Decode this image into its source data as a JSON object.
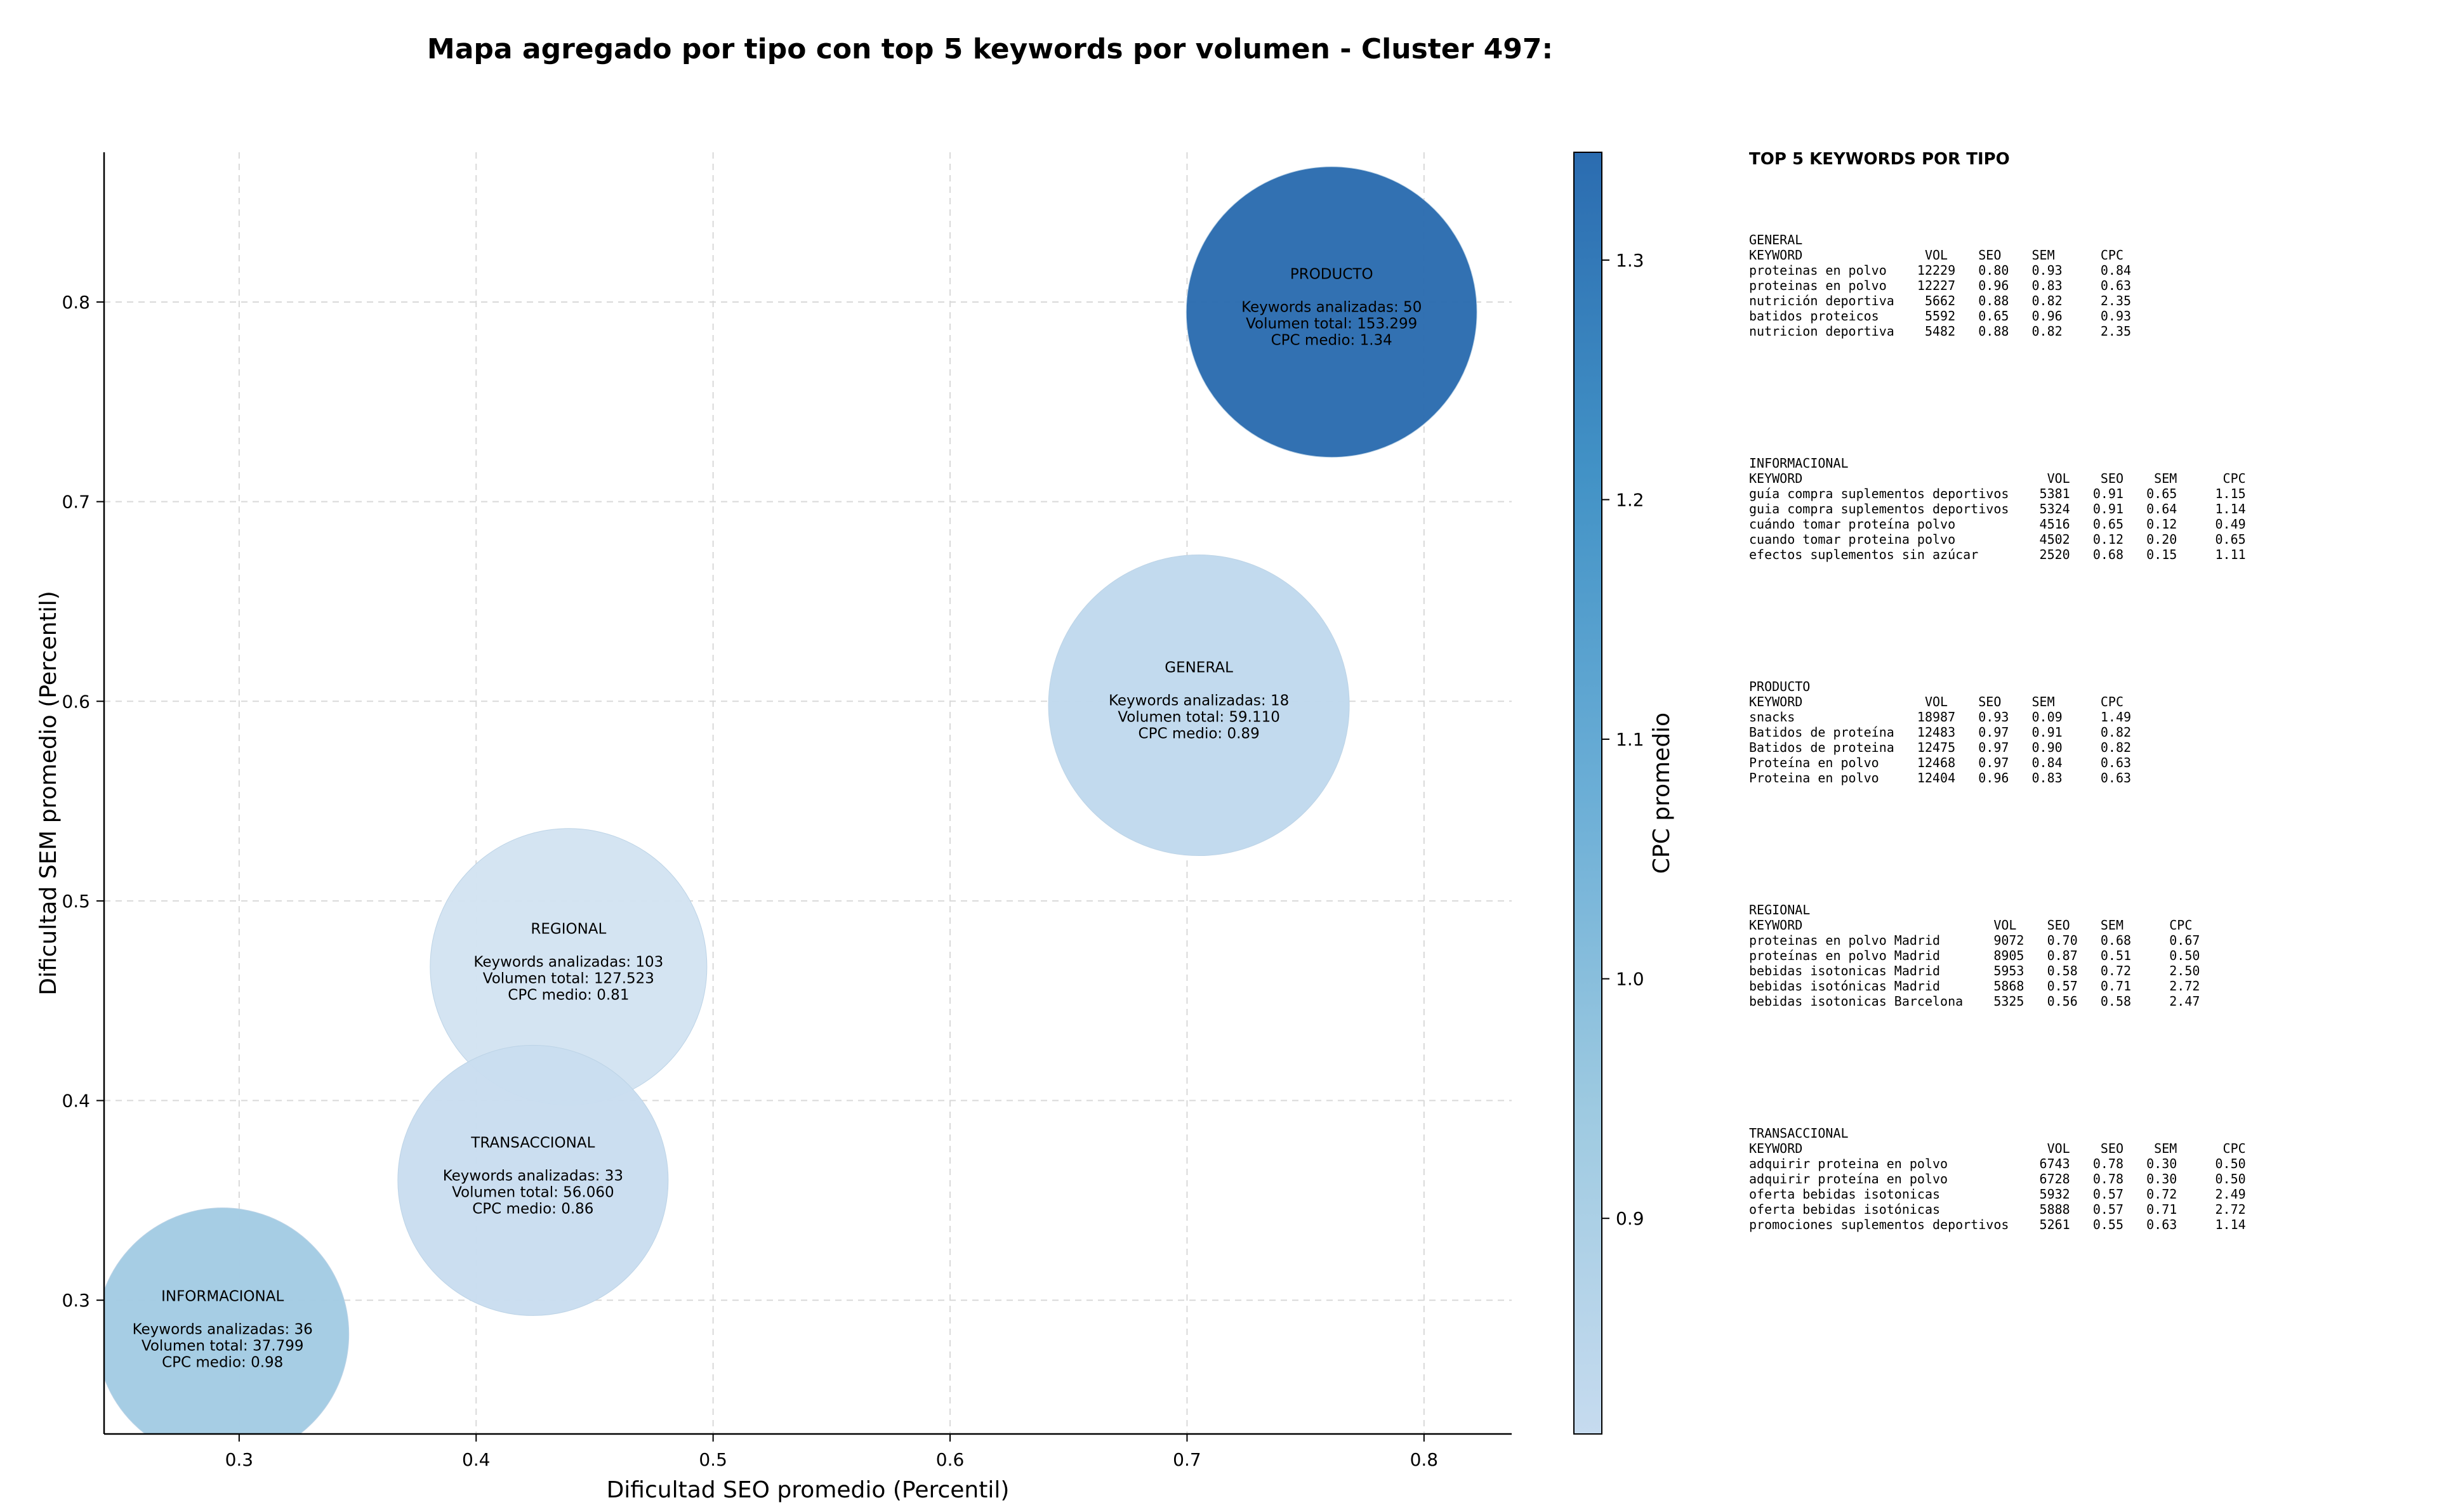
{
  "title": "Mapa agregado por tipo con top 5 keywords por volumen - Cluster 497:",
  "chart_data": {
    "type": "scatter",
    "subtype": "bubble",
    "xlabel": "Dificultad SEO promedio (Percentil)",
    "ylabel": "Dificultad SEM promedio (Percentil)",
    "xlim": [
      0.243,
      0.837
    ],
    "ylim": [
      0.233,
      0.875
    ],
    "xticks": [
      "0.3",
      "0.4",
      "0.5",
      "0.6",
      "0.7",
      "0.8"
    ],
    "yticks": [
      "0.3",
      "0.4",
      "0.5",
      "0.6",
      "0.7",
      "0.8"
    ],
    "grid": true,
    "colorbar": {
      "label": "CPC promedio",
      "range": [
        0.81,
        1.345
      ],
      "ticks": [
        "0.9",
        "1.0",
        "1.1",
        "1.2",
        "1.3"
      ],
      "colors": [
        "#c6dbef",
        "#9ecae1",
        "#6baed6",
        "#4292c6",
        "#2b6cb0"
      ]
    },
    "points": [
      {
        "type": "PRODUCTO",
        "x": 0.761,
        "y": 0.795,
        "keywords_label": "Keywords analizadas: 50",
        "volume_label": "Volumen total: 153.299",
        "cpc_label": "CPC medio: 1.34",
        "cpc": 1.34,
        "volume": 153299,
        "color": "#2b6cb0"
      },
      {
        "type": "GENERAL",
        "x": 0.705,
        "y": 0.598,
        "keywords_label": "Keywords analizadas: 18",
        "volume_label": "Volumen total: 59.110",
        "cpc_label": "CPC medio: 0.89",
        "cpc": 0.89,
        "volume": 59110,
        "color": "#c0d9ed"
      },
      {
        "type": "REGIONAL",
        "x": 0.439,
        "y": 0.467,
        "keywords_label": "Keywords analizadas: 103",
        "volume_label": "Volumen total: 127.523",
        "cpc_label": "CPC medio: 0.81",
        "cpc": 0.81,
        "volume": 127523,
        "color": "#d3e3f2"
      },
      {
        "type": "TRANSACCIONAL",
        "x": 0.424,
        "y": 0.36,
        "keywords_label": "Keywords analizadas: 33",
        "volume_label": "Volumen total: 56.060",
        "cpc_label": "CPC medio: 0.86",
        "cpc": 0.86,
        "volume": 56060,
        "color": "#c9ddef"
      },
      {
        "type": "INFORMACIONAL",
        "x": 0.293,
        "y": 0.283,
        "keywords_label": "Keywords analizadas: 36",
        "volume_label": "Volumen total: 37.799",
        "cpc_label": "CPC medio: 0.98",
        "cpc": 0.98,
        "volume": 37799,
        "color": "#a3cbe3"
      }
    ]
  },
  "side_panel": {
    "heading": "TOP 5 KEYWORDS POR TIPO",
    "blocks": [
      {
        "name": "GENERAL",
        "header": "KEYWORD                VOL    SEO    SEM      CPC",
        "rows": [
          "proteinas en polvo    12229   0.80   0.93     0.84",
          "proteinas en polvo    12227   0.96   0.83     0.63",
          "nutrición deportiva    5662   0.88   0.82     2.35",
          "batidos proteicos      5592   0.65   0.96     0.93",
          "nutricion deportiva    5482   0.88   0.82     2.35"
        ]
      },
      {
        "name": "INFORMACIONAL",
        "header": "KEYWORD                                VOL    SEO    SEM      CPC",
        "rows": [
          "guía compra suplementos deportivos    5381   0.91   0.65     1.15",
          "guia compra suplementos deportivos    5324   0.91   0.64     1.14",
          "cuándo tomar proteína polvo           4516   0.65   0.12     0.49",
          "cuando tomar proteina polvo           4502   0.12   0.20     0.65",
          "efectos suplementos sin azúcar        2520   0.68   0.15     1.11"
        ]
      },
      {
        "name": "PRODUCTO",
        "header": "KEYWORD                VOL    SEO    SEM      CPC",
        "rows": [
          "snacks                18987   0.93   0.09     1.49",
          "Batidos de proteína   12483   0.97   0.91     0.82",
          "Batidos de proteina   12475   0.97   0.90     0.82",
          "Proteína en polvo     12468   0.97   0.84     0.63",
          "Proteina en polvo     12404   0.96   0.83     0.63"
        ]
      },
      {
        "name": "REGIONAL",
        "header": "KEYWORD                         VOL    SEO    SEM      CPC",
        "rows": [
          "proteinas en polvo Madrid       9072   0.70   0.68     0.67",
          "proteínas en polvo Madrid       8905   0.87   0.51     0.50",
          "bebidas isotonicas Madrid       5953   0.58   0.72     2.50",
          "bebidas isotónicas Madrid       5868   0.57   0.71     2.72",
          "bebidas isotonicas Barcelona    5325   0.56   0.58     2.47"
        ]
      },
      {
        "name": "TRANSACCIONAL",
        "header": "KEYWORD                                VOL    SEO    SEM      CPC",
        "rows": [
          "adquirir proteina en polvo            6743   0.78   0.30     0.50",
          "adquirir proteína en polvo            6728   0.78   0.30     0.50",
          "oferta bebidas isotonicas             5932   0.57   0.72     2.49",
          "oferta bebidas isotónicas             5888   0.57   0.71     2.72",
          "promociones suplementos deportivos    5261   0.55   0.63     1.14"
        ]
      }
    ]
  }
}
